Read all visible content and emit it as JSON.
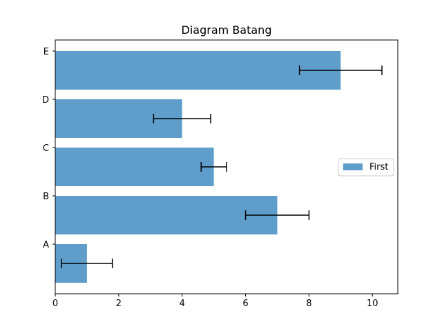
{
  "chart_data": {
    "type": "bar",
    "orientation": "horizontal",
    "title": "Diagram Batang",
    "xlabel": "",
    "ylabel": "",
    "categories": [
      "A",
      "B",
      "C",
      "D",
      "E"
    ],
    "series": [
      {
        "name": "First",
        "values": [
          1,
          7,
          5,
          4,
          9
        ],
        "errors": [
          0.8,
          1.0,
          0.4,
          0.9,
          1.3
        ],
        "color": "#5f9ecb"
      }
    ],
    "xlim": [
      0,
      10.8
    ],
    "xticks": [
      0,
      2,
      4,
      6,
      8,
      10
    ],
    "grid": false,
    "legend": "center-right"
  }
}
